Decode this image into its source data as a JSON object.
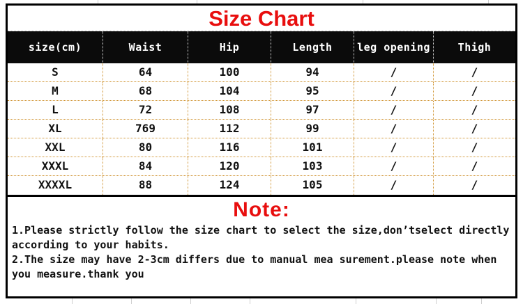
{
  "chart_data": {
    "type": "table",
    "title": "Size Chart",
    "columns": [
      "size(cm)",
      "Waist",
      "Hip",
      "Length",
      "leg opening",
      "Thigh"
    ],
    "rows": [
      [
        "S",
        "64",
        "100",
        "94",
        "/",
        "/"
      ],
      [
        "M",
        "68",
        "104",
        "95",
        "/",
        "/"
      ],
      [
        "L",
        "72",
        "108",
        "97",
        "/",
        "/"
      ],
      [
        "XL",
        "769",
        "112",
        "99",
        "/",
        "/"
      ],
      [
        "XXL",
        "80",
        "116",
        "101",
        "/",
        "/"
      ],
      [
        "XXXL",
        "84",
        "120",
        "103",
        "/",
        "/"
      ],
      [
        "XXXXL",
        "88",
        "124",
        "105",
        "/",
        "/"
      ]
    ]
  },
  "note": {
    "heading": "Note:",
    "body": "1.Please strictly follow the size chart to select the size,don’tselect directly\naccording to your habits.\n2.The size may have 2-3cm differs due to manual mea surement.please note when\nyou measure.thank you"
  },
  "colors": {
    "accent_red": "#e80e0e",
    "header_bg": "#0b0b0b",
    "dotted_grid": "#cf9433",
    "border_black": "#000000"
  }
}
